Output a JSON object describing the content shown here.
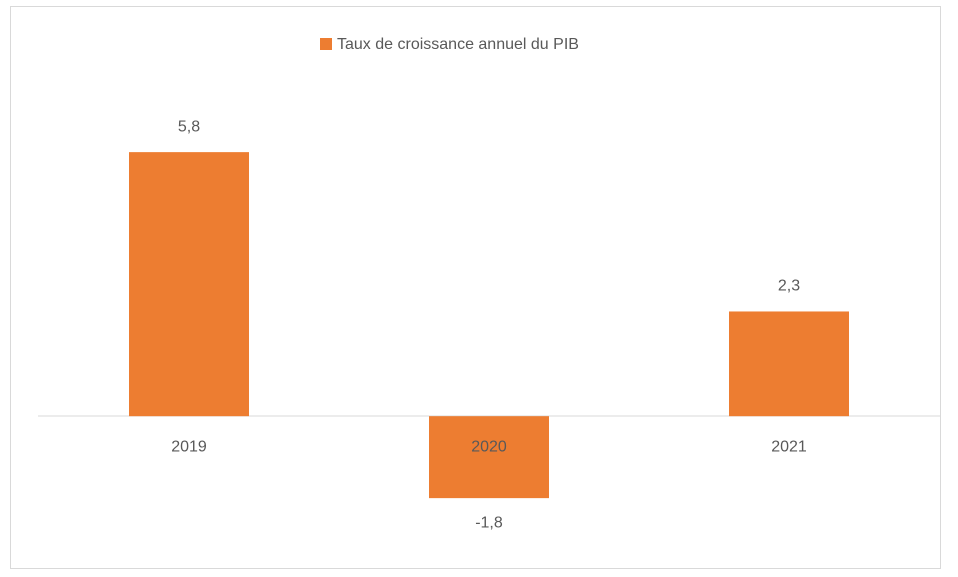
{
  "chart_data": {
    "type": "bar",
    "categories": [
      "2019",
      "2020",
      "2021"
    ],
    "series": [
      {
        "name": "Taux de croissance annuel du PIB",
        "color": "#ed7d31",
        "values": [
          5.8,
          -1.8,
          2.3
        ],
        "value_labels": [
          "5,8",
          "-1,8",
          "2,3"
        ]
      }
    ],
    "ylim": [
      -2.5,
      7
    ],
    "legend": "top"
  }
}
